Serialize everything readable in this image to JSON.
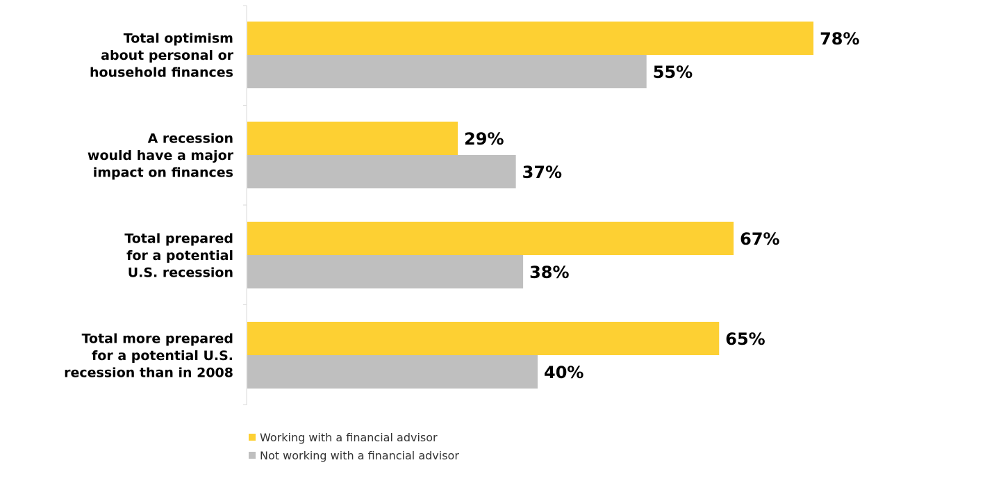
{
  "chart_data": {
    "type": "bar",
    "orientation": "horizontal",
    "title": "",
    "xlabel": "",
    "ylabel": "",
    "xlim": [
      0,
      100
    ],
    "grid": false,
    "legend_position": "bottom-left",
    "categories": [
      [
        "Total optimism",
        "about personal or",
        "household finances"
      ],
      [
        "A recession",
        "would have a major",
        "impact on finances"
      ],
      [
        "Total prepared",
        "for a potential",
        "U.S. recession"
      ],
      [
        "Total more prepared",
        "for a potential U.S.",
        "recession than in 2008"
      ]
    ],
    "series": [
      {
        "name": "Working with a financial advisor",
        "color": "#FDD033",
        "values": [
          78,
          29,
          67,
          65
        ],
        "labels": [
          "78%",
          "29%",
          "67%",
          "65%"
        ]
      },
      {
        "name": "Not working with a financial advisor",
        "color": "#BFBFBF",
        "values": [
          55,
          37,
          38,
          40
        ],
        "labels": [
          "55%",
          "37%",
          "38%",
          "40%"
        ]
      }
    ]
  }
}
